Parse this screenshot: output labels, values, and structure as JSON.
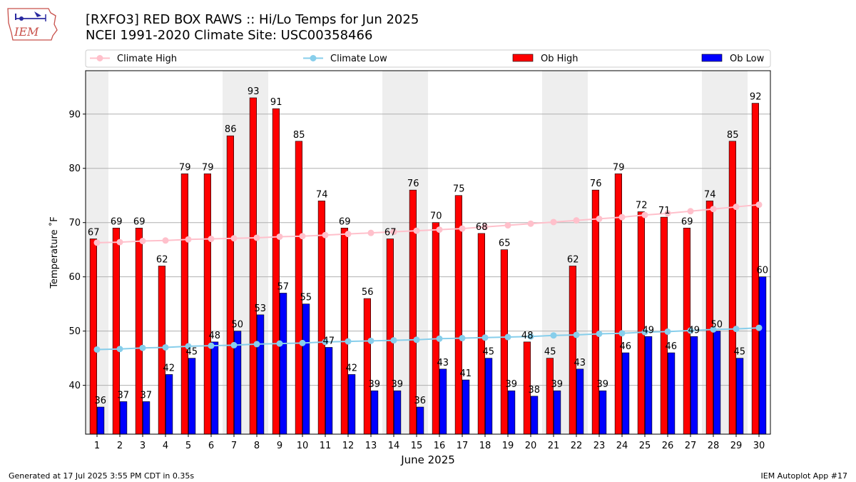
{
  "header": {
    "title_line1": "[RXFO3] RED BOX RAWS :: Hi/Lo Temps for Jun 2025",
    "title_line2": "NCEI 1991-2020 Climate Site: USC00358466",
    "logo_text": "IEM"
  },
  "footer": {
    "left": "Generated at 17 Jul 2025 3:55 PM CDT in 0.35s",
    "right": "IEM Autoplot App #17"
  },
  "colors": {
    "ob_high": "#ff0000",
    "ob_low": "#0000ff",
    "climate_high": "#ffc0cb",
    "climate_low": "#87ceeb",
    "weekend_shade": "#eeeeee",
    "grid": "#b0b0b0"
  },
  "chart_data": {
    "type": "bar",
    "xlabel": "June 2025",
    "ylabel": "Temperature ˚F",
    "ylim": [
      31,
      98
    ],
    "yticks": [
      40,
      50,
      60,
      70,
      80,
      90
    ],
    "grid": true,
    "legend_position": "top",
    "categories": [
      "1",
      "2",
      "3",
      "4",
      "5",
      "6",
      "7",
      "8",
      "9",
      "10",
      "11",
      "12",
      "13",
      "14",
      "15",
      "16",
      "17",
      "18",
      "19",
      "20",
      "21",
      "22",
      "23",
      "24",
      "25",
      "26",
      "27",
      "28",
      "29",
      "30"
    ],
    "shaded_weekend_days": [
      1,
      7,
      8,
      14,
      15,
      21,
      22,
      28,
      29
    ],
    "series": [
      {
        "name": "Climate High",
        "kind": "line",
        "values": [
          66.3,
          66.4,
          66.6,
          66.7,
          66.9,
          67.0,
          67.1,
          67.2,
          67.4,
          67.5,
          67.7,
          67.9,
          68.1,
          68.3,
          68.5,
          68.7,
          68.9,
          69.2,
          69.5,
          69.8,
          70.1,
          70.4,
          70.7,
          71.0,
          71.4,
          71.7,
          72.1,
          72.5,
          72.9,
          73.3
        ]
      },
      {
        "name": "Climate Low",
        "kind": "line",
        "values": [
          46.6,
          46.7,
          46.9,
          47.0,
          47.2,
          47.3,
          47.4,
          47.6,
          47.7,
          47.8,
          48.0,
          48.1,
          48.2,
          48.3,
          48.4,
          48.6,
          48.7,
          48.8,
          48.9,
          49.0,
          49.2,
          49.3,
          49.5,
          49.6,
          49.8,
          49.9,
          50.1,
          50.3,
          50.4,
          50.6
        ]
      },
      {
        "name": "Ob High",
        "kind": "bar",
        "values": [
          67,
          69,
          69,
          62,
          79,
          79,
          86,
          93,
          91,
          85,
          74,
          69,
          56,
          67,
          76,
          70,
          75,
          68,
          65,
          48,
          45,
          62,
          76,
          79,
          72,
          71,
          69,
          74,
          85,
          92
        ]
      },
      {
        "name": "Ob Low",
        "kind": "bar",
        "values": [
          36,
          37,
          37,
          42,
          45,
          48,
          50,
          53,
          57,
          55,
          47,
          42,
          39,
          39,
          36,
          43,
          41,
          45,
          39,
          38,
          39,
          43,
          39,
          46,
          49,
          46,
          49,
          50,
          45,
          60
        ]
      }
    ]
  }
}
